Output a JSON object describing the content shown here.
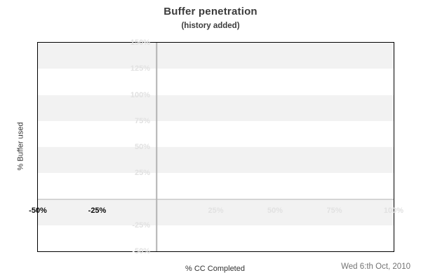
{
  "page": {
    "title": "Buffer penetration",
    "subtitle": "(history added)",
    "date_stamp": "Wed 6:th Oct, 2010"
  },
  "chart_data": {
    "type": "line",
    "title": "Buffer penetration",
    "subtitle": "(history added)",
    "xlabel": "% CC Completed",
    "ylabel": "% Buffer used",
    "xlim": [
      -50,
      100
    ],
    "ylim": [
      -50,
      150
    ],
    "x_ticks": [
      -50,
      -25,
      25,
      50,
      75,
      100
    ],
    "x_tick_labels": [
      "-50%",
      "-25%",
      "25%",
      "50%",
      "75%",
      "100%"
    ],
    "x_tick_emphasized": [
      true,
      true,
      false,
      false,
      false,
      false
    ],
    "y_ticks": [
      150,
      125,
      100,
      75,
      50,
      25,
      -25,
      -50
    ],
    "y_tick_labels": [
      "150%",
      "125%",
      "100%",
      "75%",
      "50%",
      "25%",
      "-25%",
      "-50%"
    ],
    "zero_x_line": 0,
    "zero_y_line": 0,
    "series": [],
    "grid_bands": [
      {
        "y_from": 150,
        "y_to": 125,
        "color": "#f2f2f2"
      },
      {
        "y_from": 125,
        "y_to": 100,
        "color": "#ffffff"
      },
      {
        "y_from": 100,
        "y_to": 75,
        "color": "#f2f2f2"
      },
      {
        "y_from": 75,
        "y_to": 50,
        "color": "#ffffff"
      },
      {
        "y_from": 50,
        "y_to": 25,
        "color": "#f2f2f2"
      },
      {
        "y_from": 25,
        "y_to": 0,
        "color": "#ffffff"
      },
      {
        "y_from": 0,
        "y_to": -25,
        "color": "#f2f2f2"
      },
      {
        "y_from": -25,
        "y_to": -50,
        "color": "#ffffff"
      }
    ],
    "colors": {
      "zero_line": "#b3b3b3",
      "plot_border": "#000000",
      "muted_tick_label": "#e1e1e1",
      "emphasized_tick_label": "#0a0a0a",
      "title_text": "#3c3c3c",
      "axis_title_text": "#333333",
      "date_text": "#737373"
    },
    "layout": {
      "legend": "none",
      "y_labels_attached_to": "x-zero-line",
      "x_labels_attached_to": "y-zero-line"
    }
  }
}
